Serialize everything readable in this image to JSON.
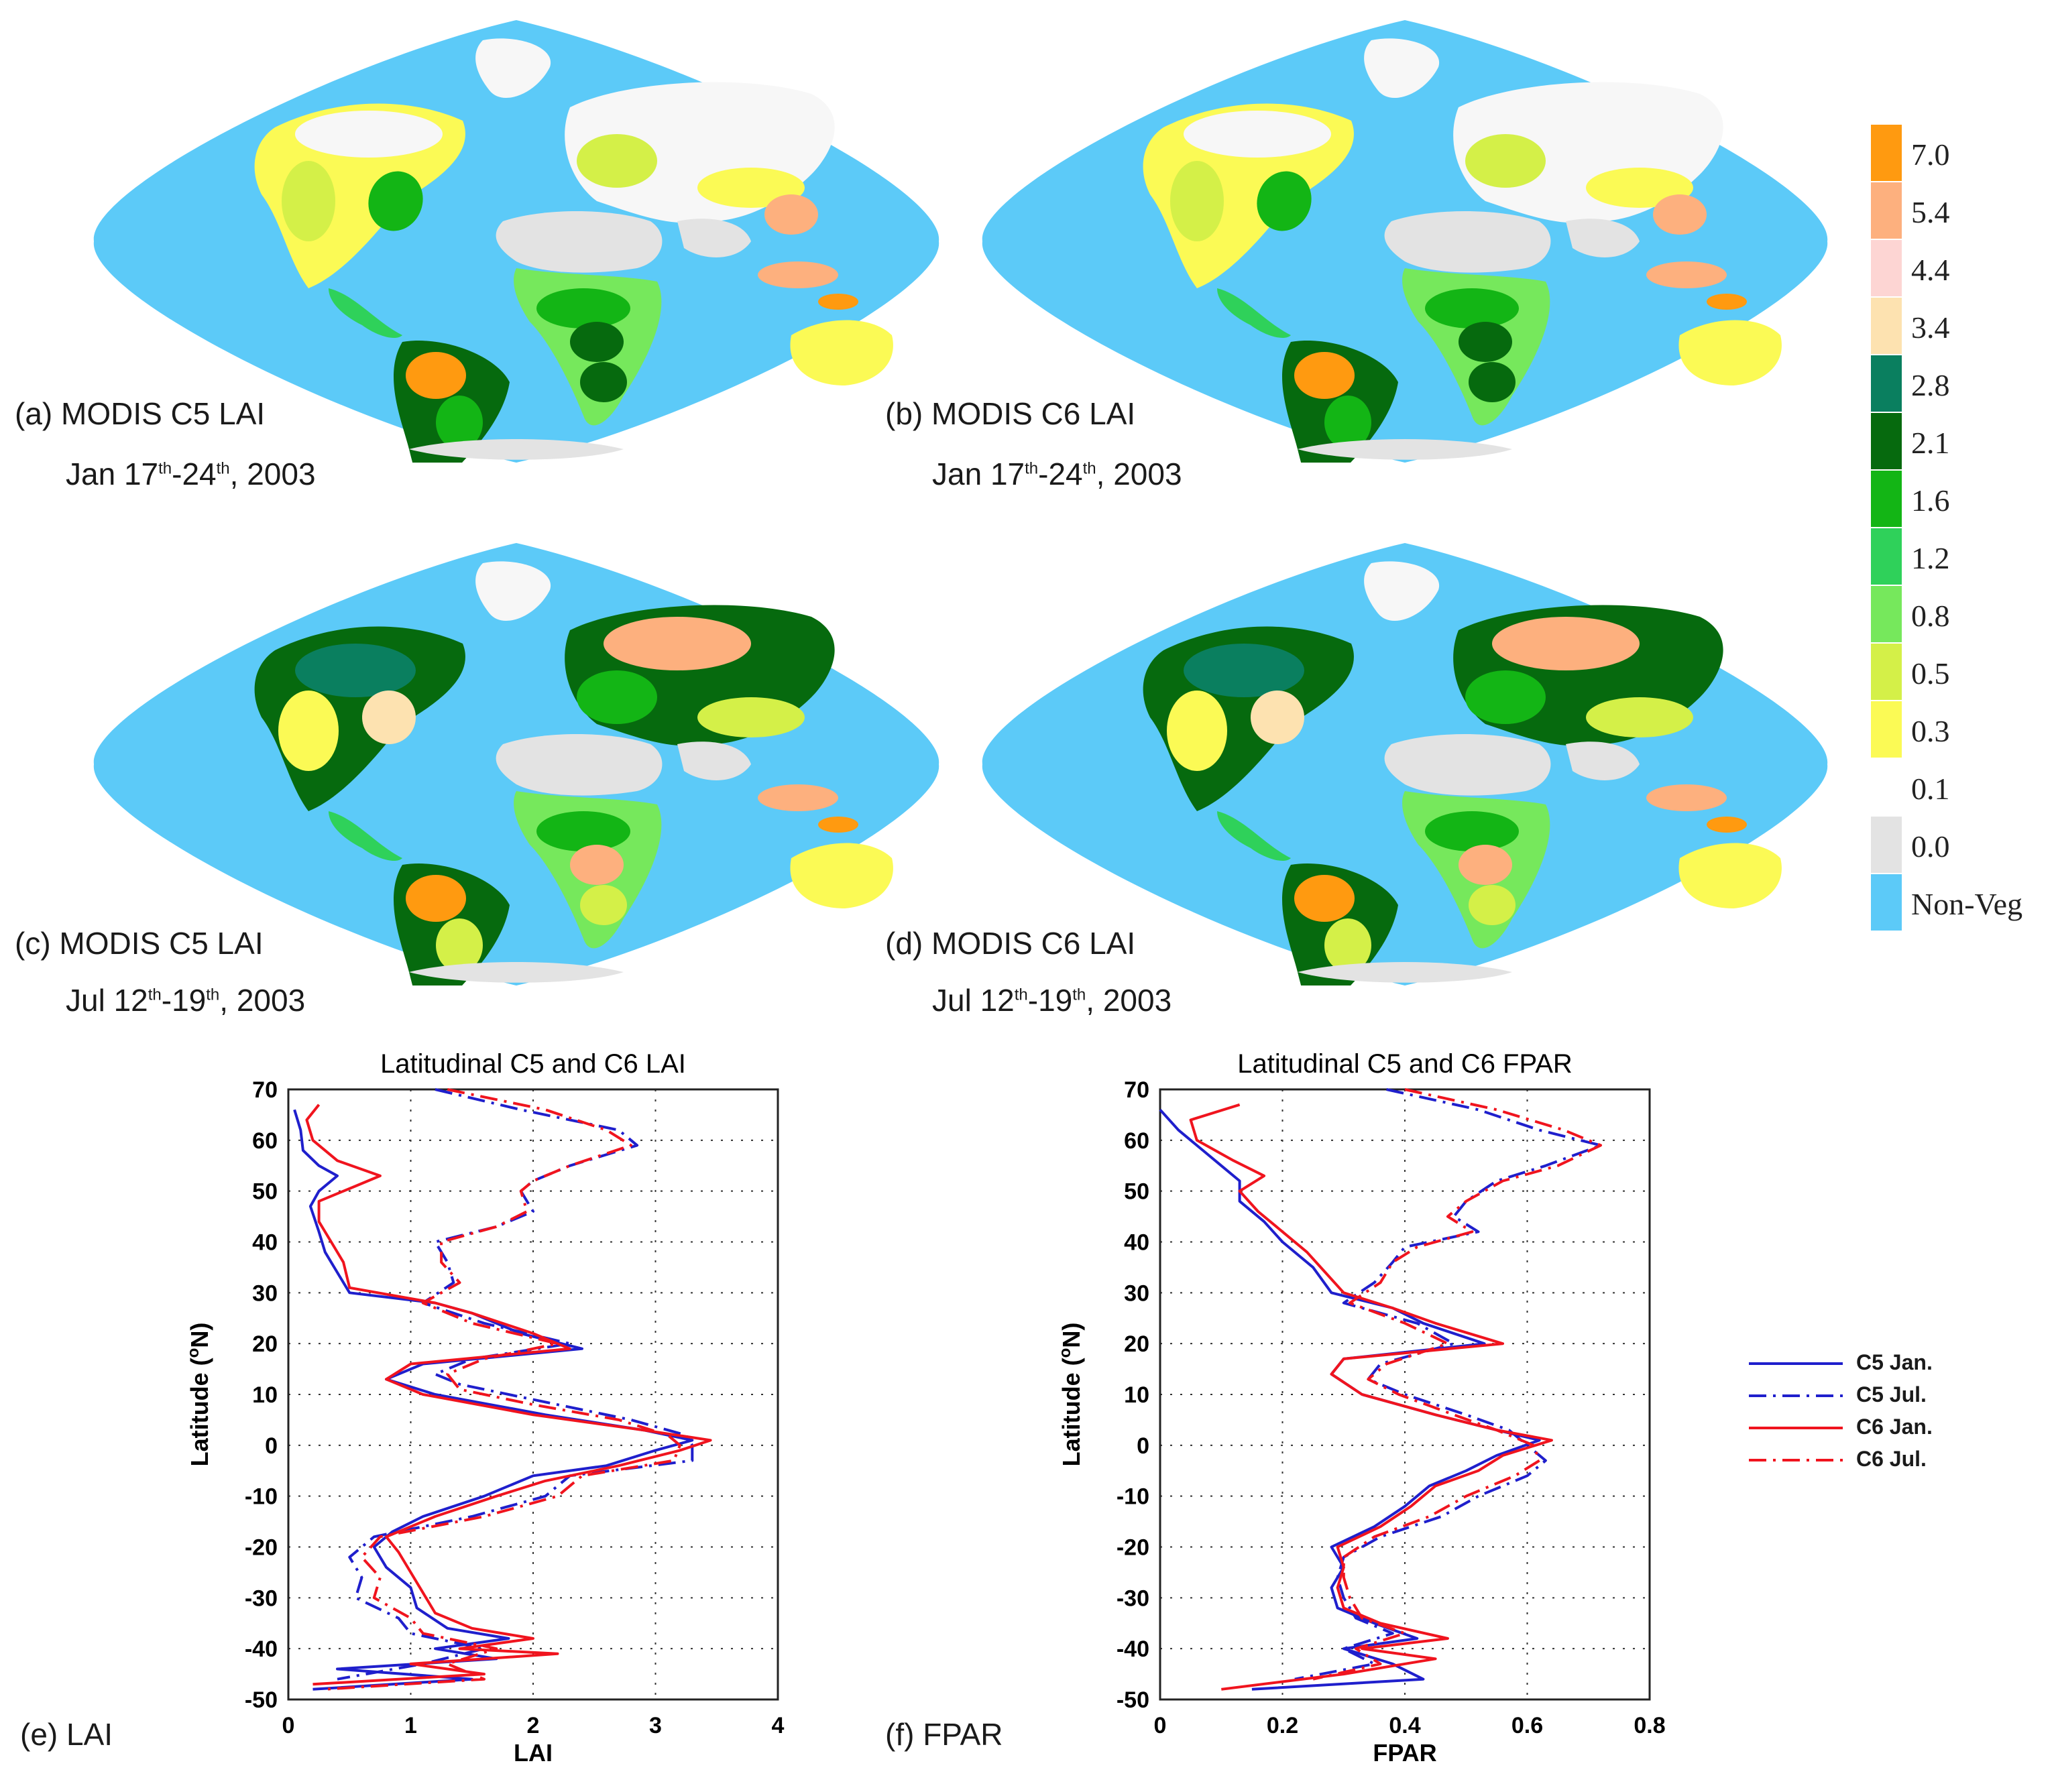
{
  "maps": [
    {
      "id": "a",
      "caption": "(a) MODIS C5 LAI",
      "date": {
        "month": "Jan",
        "d1": "17",
        "s1": "th",
        "d2": "24",
        "s2": "th",
        "year": ", 2003"
      },
      "season": "jan"
    },
    {
      "id": "b",
      "caption": "(b) MODIS C6 LAI",
      "date": {
        "month": "Jan",
        "d1": "17",
        "s1": "th",
        "d2": "24",
        "s2": "th",
        "year": ", 2003"
      },
      "season": "jan"
    },
    {
      "id": "c",
      "caption": "(c) MODIS C5 LAI",
      "date": {
        "month": "Jul",
        "d1": "12",
        "s1": "th",
        "d2": "19",
        "s2": "th",
        "year": ", 2003"
      },
      "season": "jul"
    },
    {
      "id": "d",
      "caption": "(d) MODIS C6 LAI",
      "date": {
        "month": "Jul",
        "d1": "12",
        "s1": "th",
        "d2": "19",
        "s2": "th",
        "year": ", 2003"
      },
      "season": "jul"
    }
  ],
  "legend": {
    "items": [
      {
        "label": "7.0",
        "color": "#ff9a10"
      },
      {
        "label": "5.4",
        "color": "#fdb07e"
      },
      {
        "label": "4.4",
        "color": "#fdd5d3"
      },
      {
        "label": "3.4",
        "color": "#fde2b0"
      },
      {
        "label": "2.8",
        "color": "#0a7f5f"
      },
      {
        "label": "2.1",
        "color": "#066a0e"
      },
      {
        "label": "1.6",
        "color": "#13b515"
      },
      {
        "label": "1.2",
        "color": "#2fd15a"
      },
      {
        "label": "0.8",
        "color": "#76e85c"
      },
      {
        "label": "0.5",
        "color": "#d4f048"
      },
      {
        "label": "0.3",
        "color": "#fbfa55"
      },
      {
        "label": "0.1",
        "color": "#ffffff"
      },
      {
        "label": "0.0",
        "color": "#e3e3e3"
      },
      {
        "label": "Non-Veg",
        "color": "#5ccaf8"
      }
    ]
  },
  "colors": {
    "ocean": "#5ccaf8",
    "barren": "#e3e3e3",
    "snow": "#f7f7f7",
    "c5": "#1f1fcc",
    "c6": "#f0141e"
  },
  "chart_data": [
    {
      "type": "line",
      "panel_label": "(e) LAI",
      "title": "Latitudinal C5 and C6 LAI",
      "xlabel": "LAI",
      "ylabel": "Latitude (°N)",
      "ylabel_parts": {
        "pre": "Latitude (",
        "sup": "o",
        "post": "N)"
      },
      "xlim": [
        0,
        4
      ],
      "ylim": [
        -50,
        70
      ],
      "xticks": [
        0,
        1,
        2,
        3,
        4
      ],
      "yticks": [
        70,
        60,
        50,
        40,
        30,
        20,
        10,
        0,
        -10,
        -20,
        -30,
        -40,
        -50
      ],
      "series": [
        {
          "name": "C5 Jan.",
          "style": "solid",
          "color": "#1f1fcc",
          "lat": [
            66,
            62,
            58,
            55,
            53,
            50,
            47,
            42,
            38,
            34,
            30,
            28,
            26,
            22,
            19,
            16,
            13,
            10,
            6,
            3,
            1,
            -1,
            -4,
            -6,
            -10,
            -14,
            -17,
            -20,
            -24,
            -28,
            -32,
            -36,
            -38,
            -40,
            -42,
            -44,
            -46,
            -48
          ],
          "x": [
            0.05,
            0.1,
            0.12,
            0.25,
            0.4,
            0.25,
            0.18,
            0.25,
            0.3,
            0.4,
            0.5,
            1.2,
            1.5,
            1.9,
            2.4,
            1.1,
            0.8,
            1.2,
            2.1,
            2.9,
            3.3,
            3.0,
            2.6,
            2.0,
            1.6,
            1.1,
            0.85,
            0.7,
            0.8,
            1.0,
            1.05,
            1.3,
            1.8,
            1.2,
            1.7,
            0.4,
            1.5,
            0.2
          ]
        },
        {
          "name": "C5 Jul.",
          "style": "dashdot",
          "color": "#1f1fcc",
          "lat": [
            70,
            66,
            62,
            59,
            55,
            52,
            50,
            46,
            43,
            40,
            36,
            32,
            28,
            24,
            20,
            17,
            14,
            12,
            9,
            5,
            2,
            0,
            -3,
            -6,
            -10,
            -14,
            -18,
            -22,
            -26,
            -30,
            -34,
            -37,
            -40,
            -43,
            -46
          ],
          "x": [
            1.2,
            1.9,
            2.7,
            2.85,
            2.3,
            2.0,
            1.9,
            2.0,
            1.7,
            1.2,
            1.3,
            1.35,
            1.1,
            1.6,
            2.3,
            1.5,
            1.2,
            1.4,
            2.0,
            2.8,
            3.25,
            3.3,
            3.3,
            2.3,
            2.1,
            1.5,
            0.7,
            0.5,
            0.6,
            0.55,
            0.9,
            1.0,
            1.6,
            1.1,
            0.4
          ]
        },
        {
          "name": "C6 Jan.",
          "style": "solid",
          "color": "#f0141e",
          "lat": [
            67,
            64,
            60,
            56,
            53,
            51,
            48,
            44,
            40,
            36,
            31,
            28,
            26,
            22,
            19,
            16,
            13,
            10,
            6,
            3,
            1,
            -1,
            -4,
            -7,
            -10,
            -14,
            -18,
            -21,
            -25,
            -29,
            -33,
            -36,
            -38,
            -40,
            -41,
            -43,
            -45,
            -47
          ],
          "x": [
            0.25,
            0.15,
            0.2,
            0.4,
            0.75,
            0.55,
            0.25,
            0.25,
            0.35,
            0.45,
            0.5,
            1.2,
            1.5,
            2.0,
            2.3,
            1.0,
            0.8,
            1.1,
            2.0,
            2.9,
            3.45,
            3.2,
            2.7,
            2.1,
            1.7,
            1.2,
            0.8,
            0.9,
            1.0,
            1.1,
            1.2,
            1.5,
            2.0,
            1.4,
            2.2,
            1.0,
            1.6,
            0.2
          ]
        },
        {
          "name": "C6 Jul.",
          "style": "dashdot",
          "color": "#f0141e",
          "lat": [
            70,
            66,
            62,
            59,
            55,
            52,
            50,
            46,
            43,
            40,
            36,
            32,
            28,
            24,
            20,
            17,
            14,
            11,
            8,
            5,
            2,
            0,
            -3,
            -6,
            -10,
            -14,
            -18,
            -22,
            -26,
            -30,
            -34,
            -37,
            -40,
            -43,
            -46,
            -48
          ],
          "x": [
            1.3,
            2.1,
            2.6,
            2.8,
            2.3,
            2.0,
            1.9,
            1.95,
            1.7,
            1.25,
            1.25,
            1.4,
            1.1,
            1.5,
            2.2,
            1.6,
            1.3,
            1.4,
            2.0,
            2.7,
            3.1,
            3.2,
            3.15,
            2.4,
            2.2,
            1.6,
            0.75,
            0.6,
            0.75,
            0.7,
            1.0,
            1.1,
            1.7,
            1.3,
            1.6,
            0.3
          ]
        }
      ]
    },
    {
      "type": "line",
      "panel_label": "(f) FPAR",
      "title": "Latitudinal C5 and C6 FPAR",
      "xlabel": "FPAR",
      "ylabel": "Latitude (°N)",
      "ylabel_parts": {
        "pre": "Latitude (",
        "sup": "o",
        "post": "N)"
      },
      "xlim": [
        0,
        0.8
      ],
      "ylim": [
        -50,
        70
      ],
      "xticks": [
        0,
        0.2,
        0.4,
        0.6,
        0.8
      ],
      "xticklabels": [
        "0",
        "0.2",
        "0.4",
        "0.6",
        "0.8"
      ],
      "yticks": [
        70,
        60,
        50,
        40,
        30,
        20,
        10,
        0,
        -10,
        -20,
        -30,
        -40,
        -50
      ],
      "series": [
        {
          "name": "C5 Jan.",
          "style": "solid",
          "color": "#1f1fcc",
          "lat": [
            66,
            62,
            58,
            55,
            52,
            48,
            44,
            40,
            35,
            30,
            27,
            24,
            20,
            17,
            14,
            10,
            6,
            3,
            1,
            -2,
            -5,
            -8,
            -12,
            -16,
            -20,
            -24,
            -28,
            -32,
            -35,
            -38,
            -40,
            -43,
            -46,
            -48
          ],
          "x": [
            0.0,
            0.03,
            0.07,
            0.1,
            0.13,
            0.13,
            0.17,
            0.2,
            0.25,
            0.28,
            0.38,
            0.43,
            0.53,
            0.3,
            0.28,
            0.33,
            0.45,
            0.55,
            0.62,
            0.55,
            0.5,
            0.44,
            0.4,
            0.35,
            0.28,
            0.3,
            0.28,
            0.29,
            0.35,
            0.42,
            0.3,
            0.38,
            0.43,
            0.15
          ]
        },
        {
          "name": "C5 Jul.",
          "style": "dashdot",
          "color": "#1f1fcc",
          "lat": [
            70,
            66,
            62,
            59,
            55,
            52,
            48,
            45,
            42,
            39,
            36,
            32,
            28,
            24,
            20,
            16,
            13,
            10,
            6,
            3,
            0,
            -3,
            -6,
            -10,
            -14,
            -18,
            -22,
            -26,
            -30,
            -34,
            -37,
            -40,
            -43,
            -46
          ],
          "x": [
            0.37,
            0.52,
            0.62,
            0.72,
            0.63,
            0.55,
            0.5,
            0.48,
            0.52,
            0.4,
            0.38,
            0.35,
            0.3,
            0.42,
            0.48,
            0.36,
            0.34,
            0.4,
            0.5,
            0.57,
            0.6,
            0.63,
            0.6,
            0.52,
            0.46,
            0.36,
            0.3,
            0.29,
            0.3,
            0.32,
            0.38,
            0.3,
            0.35,
            0.22
          ]
        },
        {
          "name": "C6 Jan.",
          "style": "solid",
          "color": "#f0141e",
          "lat": [
            67,
            64,
            60,
            56,
            53,
            50,
            46,
            42,
            38,
            34,
            30,
            27,
            24,
            20,
            17,
            14,
            10,
            6,
            3,
            1,
            -2,
            -5,
            -8,
            -12,
            -16,
            -20,
            -24,
            -28,
            -32,
            -35,
            -38,
            -40,
            -42,
            -45,
            -48
          ],
          "x": [
            0.13,
            0.05,
            0.06,
            0.12,
            0.17,
            0.13,
            0.16,
            0.2,
            0.24,
            0.27,
            0.3,
            0.38,
            0.45,
            0.56,
            0.3,
            0.28,
            0.33,
            0.45,
            0.55,
            0.64,
            0.56,
            0.52,
            0.45,
            0.41,
            0.36,
            0.29,
            0.3,
            0.29,
            0.3,
            0.36,
            0.47,
            0.33,
            0.45,
            0.3,
            0.1
          ]
        },
        {
          "name": "C6 Jul.",
          "style": "dashdot",
          "color": "#f0141e",
          "lat": [
            70,
            66,
            62,
            59,
            55,
            52,
            48,
            45,
            42,
            39,
            36,
            32,
            28,
            24,
            20,
            16,
            13,
            10,
            6,
            3,
            0,
            -3,
            -6,
            -10,
            -14,
            -18,
            -22,
            -26,
            -30,
            -34,
            -37,
            -40,
            -43,
            -46
          ],
          "x": [
            0.4,
            0.55,
            0.66,
            0.72,
            0.65,
            0.56,
            0.5,
            0.47,
            0.51,
            0.42,
            0.38,
            0.36,
            0.31,
            0.4,
            0.47,
            0.37,
            0.34,
            0.39,
            0.48,
            0.55,
            0.61,
            0.62,
            0.58,
            0.5,
            0.44,
            0.35,
            0.3,
            0.3,
            0.31,
            0.33,
            0.4,
            0.32,
            0.36,
            0.25
          ]
        }
      ]
    }
  ],
  "series_legend": [
    {
      "label": "C5 Jan.",
      "style": "solid",
      "color": "#1f1fcc"
    },
    {
      "label": "C5 Jul.",
      "style": "dashdot",
      "color": "#1f1fcc"
    },
    {
      "label": "C6 Jan.",
      "style": "solid",
      "color": "#f0141e"
    },
    {
      "label": "C6 Jul.",
      "style": "dashdot",
      "color": "#f0141e"
    }
  ]
}
